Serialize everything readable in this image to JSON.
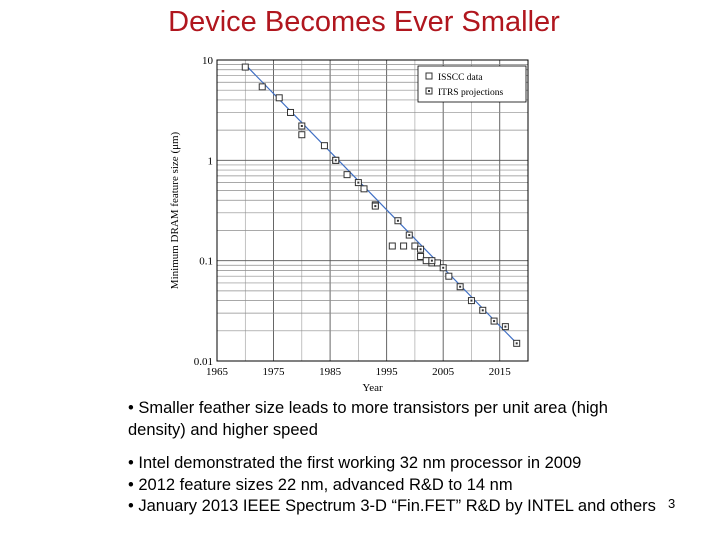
{
  "slide": {
    "title": "Device Becomes Ever Smaller",
    "bullets": [
      "• Smaller feather size leads to more transistors per unit area (high density) and higher speed",
      "• Intel demonstrated the first working 32 nm processor in 2009",
      "• 2012 feature sizes 22 nm, advanced R&D to 14 nm",
      "• January 2013 IEEE Spectrum 3-D “Fin.FET” R&D by INTEL and others"
    ],
    "page_number": "3"
  },
  "chart_data": {
    "type": "scatter",
    "title": "",
    "xlabel": "Year",
    "ylabel": "Minimum DRAM feature size (μm)",
    "xlim": [
      1965,
      2020
    ],
    "ylim": [
      0.01,
      10
    ],
    "y_scale": "log",
    "x_ticks": [
      "1965",
      "1975",
      "1985",
      "1995",
      "2005",
      "2015"
    ],
    "y_ticks": [
      "10",
      "1",
      "0.1",
      "0.01"
    ],
    "grid": true,
    "legend_position": "top-right",
    "trend_line": {
      "x": [
        1970,
        2018
      ],
      "y": [
        9.0,
        0.015
      ],
      "color": "#3f6fc4"
    },
    "series": [
      {
        "name": "ISSCC data",
        "marker": "open-square",
        "x": [
          1970,
          1973,
          1976,
          1978,
          1980,
          1984,
          1986,
          1988,
          1991,
          1993,
          1996,
          1998,
          2000,
          2001,
          2002,
          2003,
          2004,
          2006
        ],
        "y": [
          8.5,
          5.4,
          4.2,
          3.0,
          1.8,
          1.4,
          1.0,
          0.72,
          0.52,
          0.36,
          0.14,
          0.14,
          0.14,
          0.11,
          0.1,
          0.095,
          0.095,
          0.07
        ]
      },
      {
        "name": "ITRS projections",
        "marker": "dotted-square",
        "x": [
          1980,
          1986,
          1990,
          1993,
          1997,
          1999,
          2001,
          2003,
          2005,
          2008,
          2010,
          2012,
          2014,
          2016,
          2018
        ],
        "y": [
          2.2,
          1.0,
          0.6,
          0.35,
          0.25,
          0.18,
          0.13,
          0.1,
          0.085,
          0.055,
          0.04,
          0.032,
          0.025,
          0.022,
          0.015
        ]
      }
    ]
  }
}
